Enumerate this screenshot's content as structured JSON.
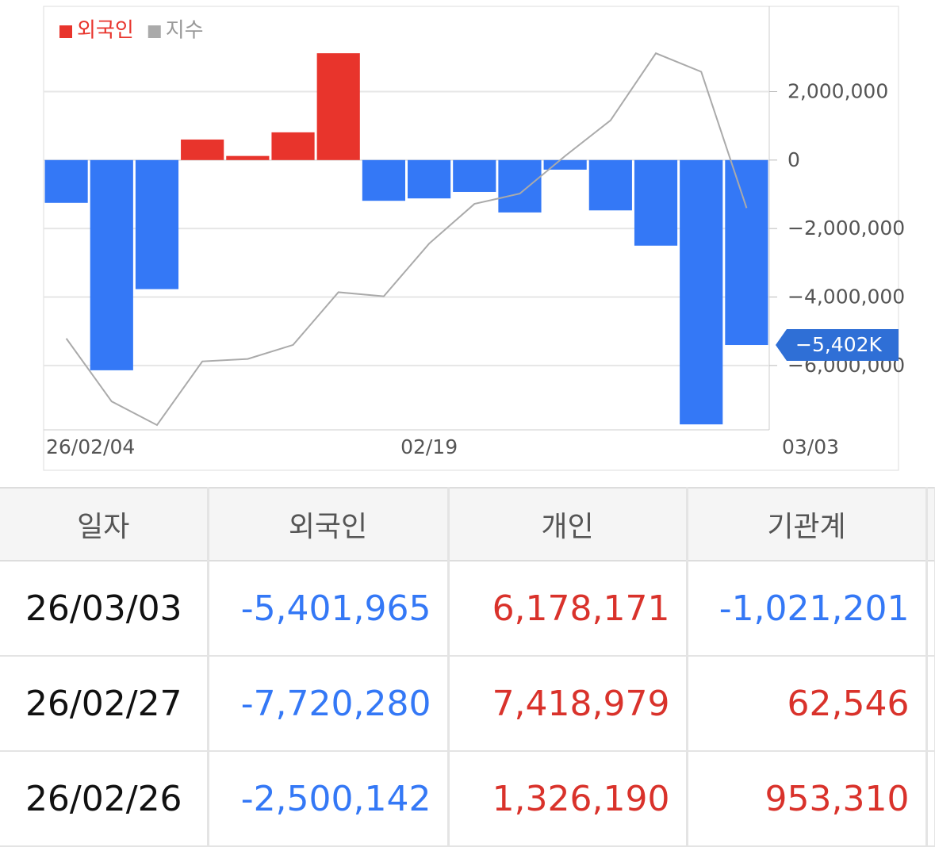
{
  "chart_data": {
    "type": "bar",
    "categories": [
      "26/02/04",
      null,
      null,
      null,
      null,
      null,
      null,
      null,
      "02/19",
      null,
      null,
      null,
      null,
      null,
      null,
      "03/03"
    ],
    "series": [
      {
        "name": "외국인",
        "color": "#e8342c",
        "negative_color": "#3478f6",
        "values": [
          -1250000,
          -6140000,
          -3770000,
          600000,
          120000,
          810000,
          3120000,
          -1190000,
          -1120000,
          -930000,
          -1530000,
          -280000,
          -1470000,
          -2500142,
          -7720280,
          -5401965
        ]
      },
      {
        "name": "지수",
        "type": "line",
        "color": "#aaaaaa",
        "values": [
          -5210000,
          -7050000,
          -7740000,
          -5880000,
          -5810000,
          -5400000,
          -3860000,
          -3980000,
          -2440000,
          -1280000,
          -980000,
          120000,
          1160000,
          3120000,
          2580000,
          -1400000
        ]
      }
    ],
    "ylim": [
      -7880000,
      4490000
    ],
    "yticks": [
      {
        "value": 2000000,
        "label": "2,000,000"
      },
      0,
      {
        "value": -2000000,
        "label": "−2,000,000"
      },
      {
        "value": -4000000,
        "label": "−4,000,000"
      },
      {
        "value": -6000000,
        "label": "−6,000,000"
      }
    ],
    "current_label": "−5,402K",
    "current_color": "#2f6fd6",
    "grid": true
  },
  "table": {
    "header": [
      "일자",
      "외국인",
      "개인",
      "기관계"
    ],
    "rows": [
      [
        "26/03/03",
        "-5,401,965",
        "6,178,171",
        "-1,021,201"
      ],
      [
        "26/02/27",
        "-7,720,280",
        "7,418,979",
        "62,546"
      ],
      [
        "26/02/26",
        "-2,500,142",
        "1,326,190",
        "953,310"
      ]
    ]
  }
}
